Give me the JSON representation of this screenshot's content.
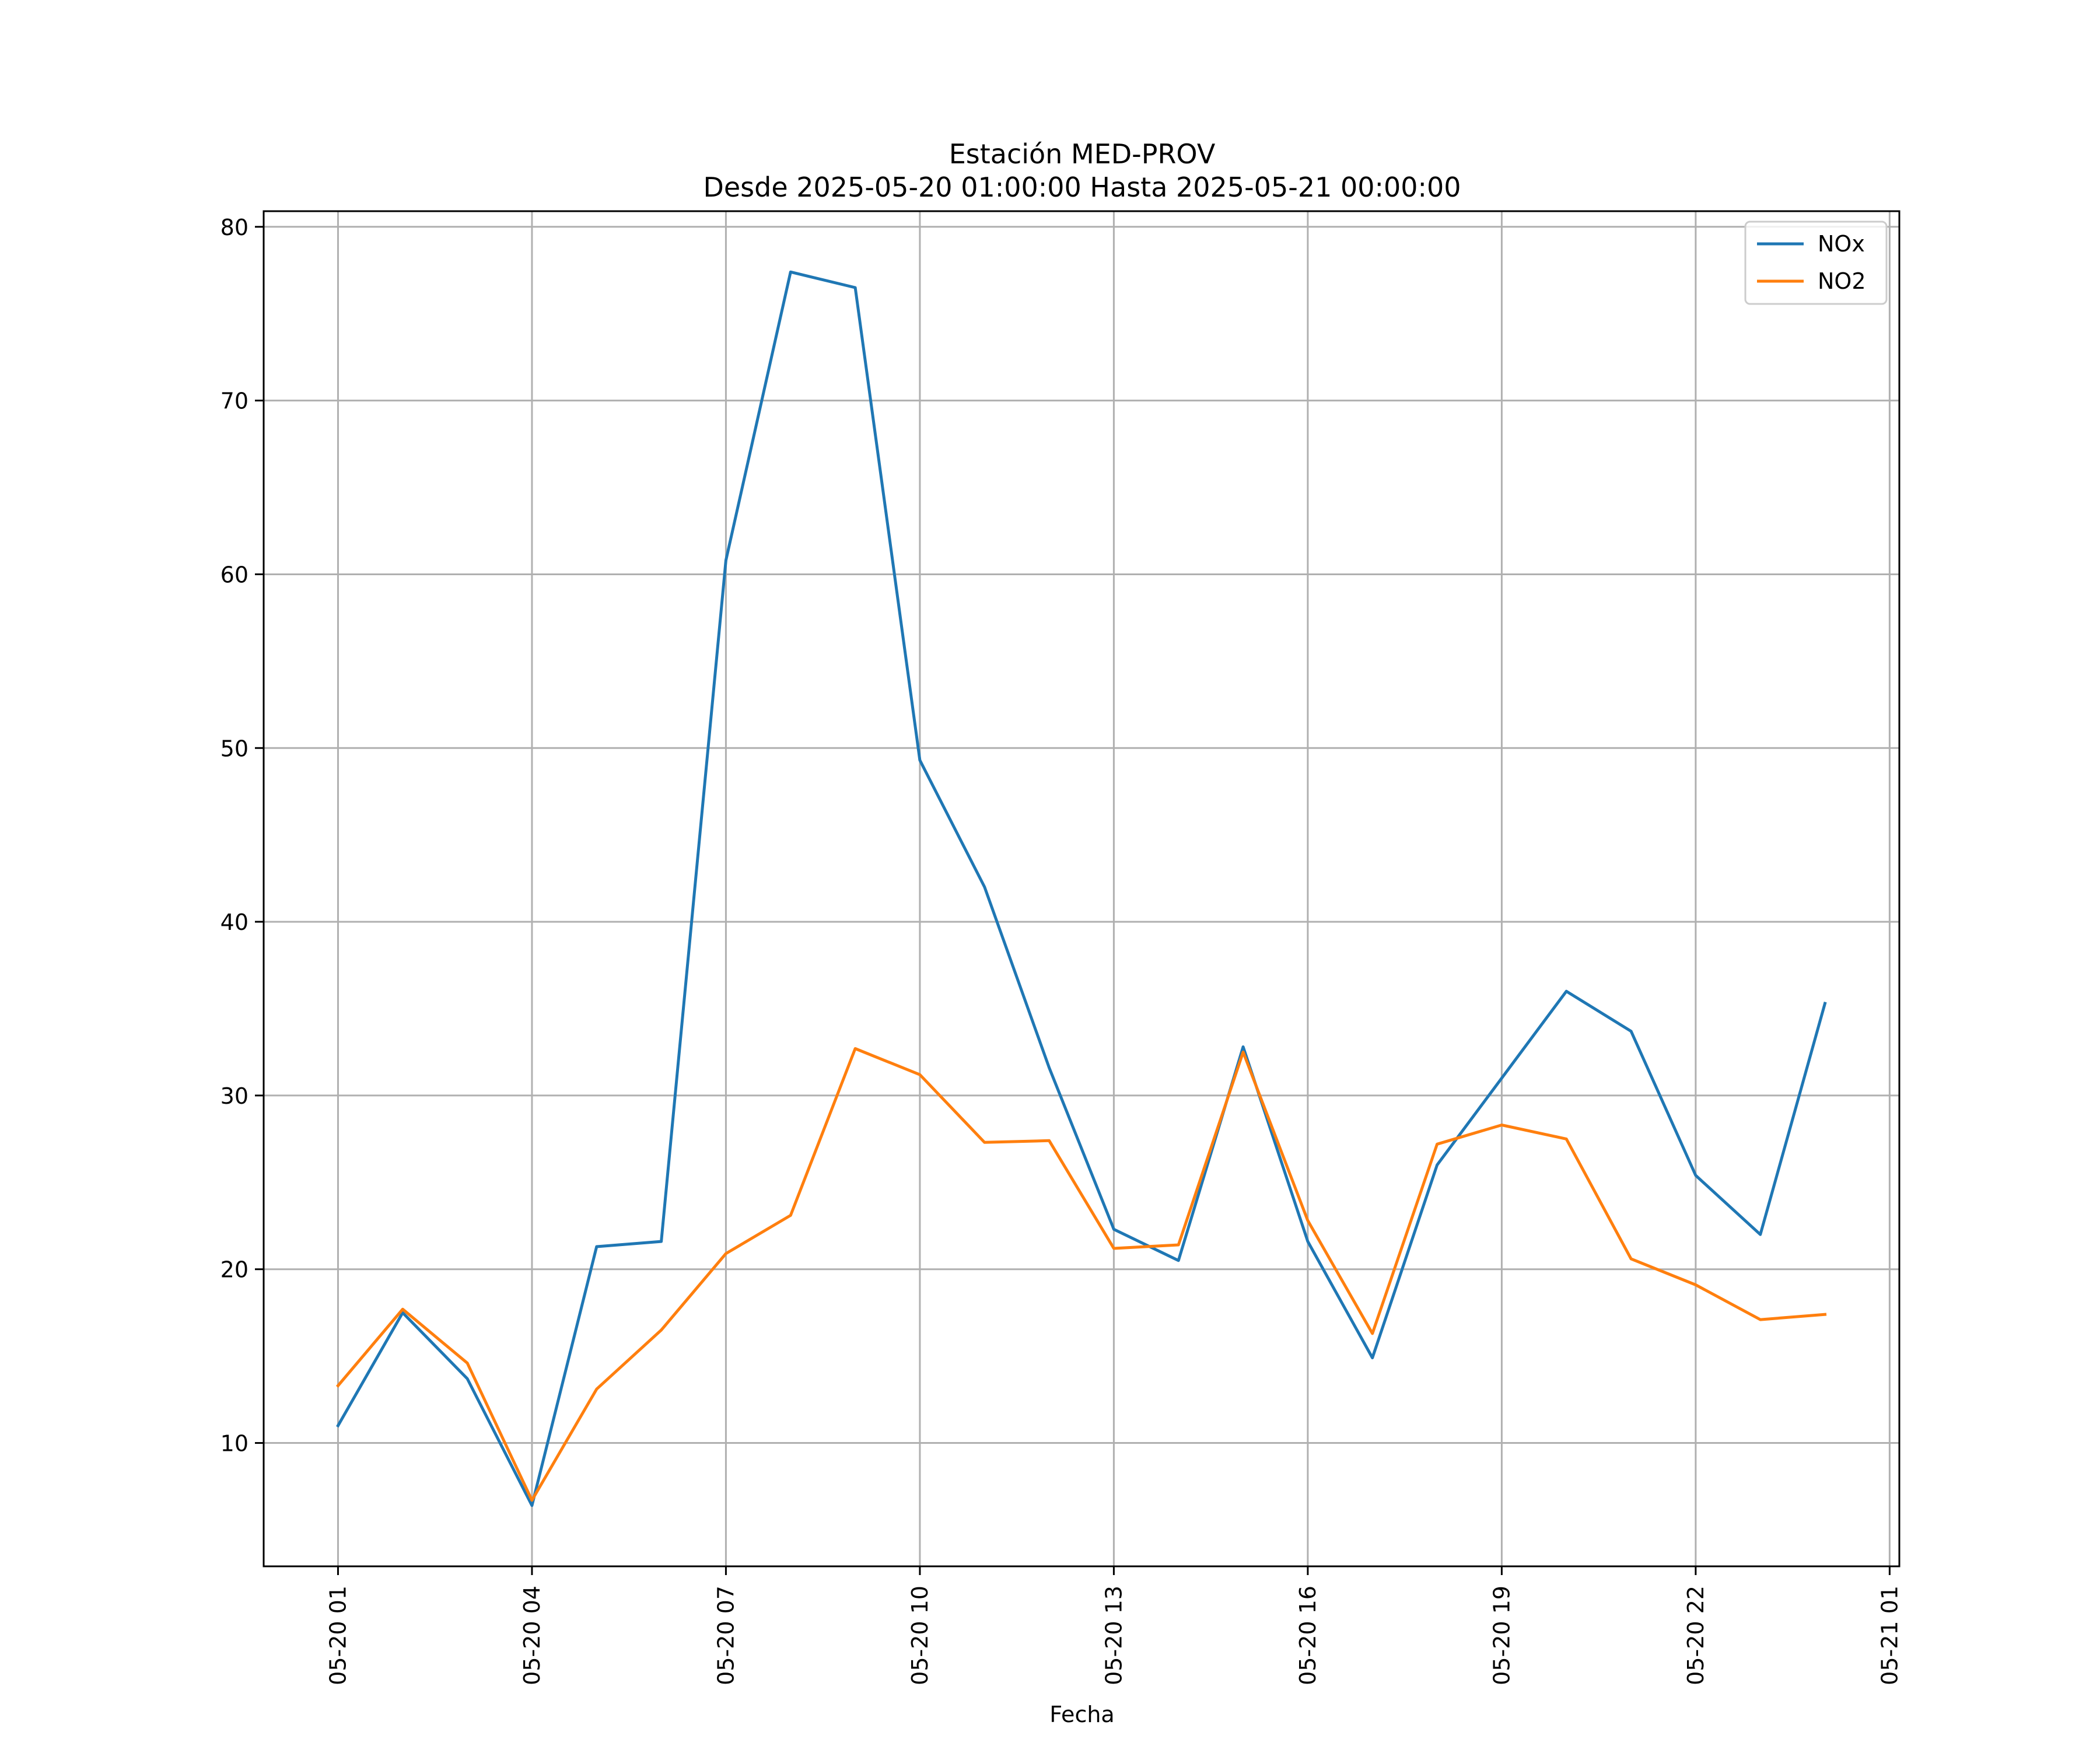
{
  "chart_data": {
    "type": "line",
    "title": "Estación MED-PROV",
    "subtitle": "Desde 2025-05-20 01:00:00 Hasta 2025-05-21 00:00:00",
    "xlabel": "Fecha",
    "ylabel": "",
    "x_type": "datetime",
    "x": [
      "2025-05-20 01:00",
      "2025-05-20 02:00",
      "2025-05-20 03:00",
      "2025-05-20 04:00",
      "2025-05-20 05:00",
      "2025-05-20 06:00",
      "2025-05-20 07:00",
      "2025-05-20 08:00",
      "2025-05-20 09:00",
      "2025-05-20 10:00",
      "2025-05-20 11:00",
      "2025-05-20 12:00",
      "2025-05-20 13:00",
      "2025-05-20 14:00",
      "2025-05-20 15:00",
      "2025-05-20 16:00",
      "2025-05-20 17:00",
      "2025-05-20 18:00",
      "2025-05-20 19:00",
      "2025-05-20 20:00",
      "2025-05-20 21:00",
      "2025-05-20 22:00",
      "2025-05-20 23:00",
      "2025-05-21 00:00"
    ],
    "xlim": [
      "2025-05-19 23:51",
      "2025-05-21 01:09"
    ],
    "xticks": [
      {
        "value": "2025-05-20 01:00",
        "label": "05-20 01"
      },
      {
        "value": "2025-05-20 04:00",
        "label": "05-20 04"
      },
      {
        "value": "2025-05-20 07:00",
        "label": "05-20 07"
      },
      {
        "value": "2025-05-20 10:00",
        "label": "05-20 10"
      },
      {
        "value": "2025-05-20 13:00",
        "label": "05-20 13"
      },
      {
        "value": "2025-05-20 16:00",
        "label": "05-20 16"
      },
      {
        "value": "2025-05-20 19:00",
        "label": "05-20 19"
      },
      {
        "value": "2025-05-20 22:00",
        "label": "05-20 22"
      },
      {
        "value": "2025-05-21 01:00",
        "label": "05-21 01"
      }
    ],
    "ylim": [
      2.9,
      80.9
    ],
    "yticks": [
      10,
      20,
      30,
      40,
      50,
      60,
      70,
      80
    ],
    "grid": true,
    "legend_position": "top-right",
    "series": [
      {
        "name": "NOx",
        "color": "#1f77b4",
        "values": [
          11.0,
          17.5,
          13.7,
          6.4,
          21.3,
          21.6,
          60.8,
          77.4,
          76.5,
          49.3,
          42.0,
          31.6,
          22.3,
          20.5,
          32.8,
          21.6,
          14.9,
          26.0,
          31.0,
          36.0,
          33.7,
          25.4,
          22.0,
          35.3
        ]
      },
      {
        "name": "NO2",
        "color": "#ff7f0e",
        "values": [
          13.3,
          17.7,
          14.6,
          6.7,
          13.1,
          16.5,
          20.9,
          23.1,
          32.7,
          31.2,
          27.3,
          27.4,
          21.2,
          21.4,
          32.5,
          22.8,
          16.3,
          27.2,
          28.3,
          27.5,
          20.6,
          19.1,
          17.1,
          17.4
        ]
      }
    ]
  }
}
